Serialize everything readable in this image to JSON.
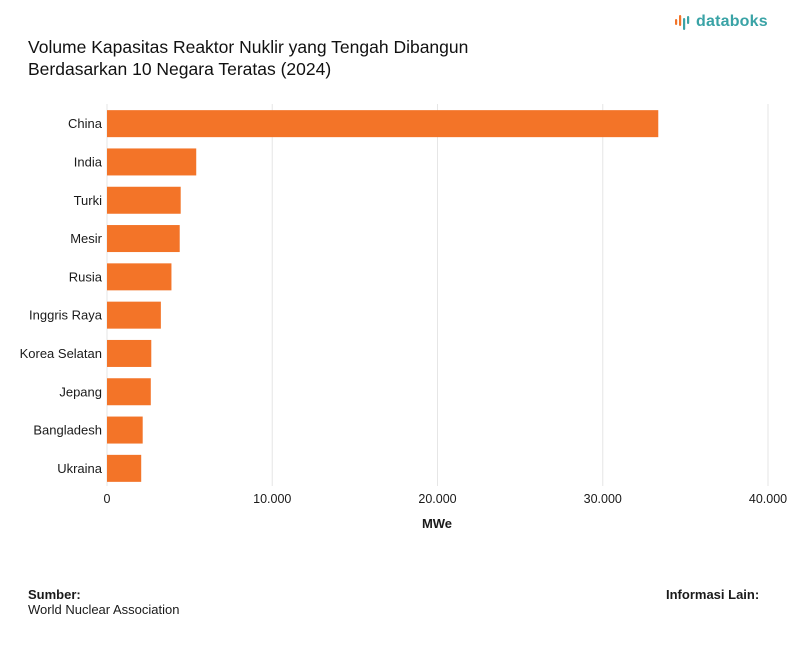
{
  "header": {
    "title_line1": "Volume Kapasitas Reaktor Nuklir yang Tengah Dibangun",
    "title_line2": "Berdasarkan 10 Negara Teratas (2024)",
    "brand": "databoks"
  },
  "colors": {
    "bar": "#f37428",
    "brand": "#3aa3a6",
    "grid": "#e6e6e6"
  },
  "chart_data": {
    "type": "bar",
    "orientation": "horizontal",
    "categories": [
      "China",
      "India",
      "Turki",
      "Mesir",
      "Rusia",
      "Inggris Raya",
      "Korea Selatan",
      "Jepang",
      "Bangladesh",
      "Ukraina"
    ],
    "values": [
      33360,
      5400,
      4460,
      4400,
      3900,
      3260,
      2680,
      2650,
      2160,
      2070
    ],
    "xlabel": "MWe",
    "ylabel": "",
    "xlim": [
      0,
      40000
    ],
    "ticks": [
      0,
      10000,
      20000,
      30000,
      40000
    ],
    "tick_labels": [
      "0",
      "10.000",
      "20.000",
      "30.000",
      "40.000"
    ],
    "grid": true
  },
  "footer": {
    "source_label": "Sumber:",
    "source": "World Nuclear Association",
    "info_label": "Informasi Lain:"
  }
}
